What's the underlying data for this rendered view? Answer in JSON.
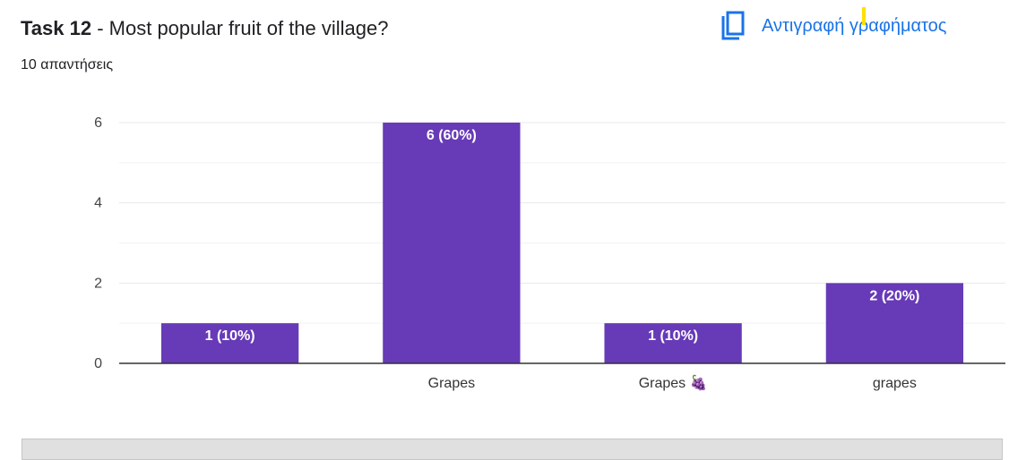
{
  "header": {
    "task_label": "Task 12",
    "question": " - Most popular fruit of the village?",
    "responses": "10 απαντήσεις",
    "copy_label": "Αντιγραφή γραφήματος"
  },
  "colors": {
    "bar": "#673ab7",
    "accent": "#1a73e8",
    "grid": "#e8e8e8",
    "axis": "#333333"
  },
  "chart_data": {
    "type": "bar",
    "categories": [
      "",
      "Grapes",
      "Grapes 🍇",
      "grapes"
    ],
    "values": [
      1,
      6,
      1,
      2
    ],
    "data_labels": [
      "1 (10%)",
      "6 (60%)",
      "1 (10%)",
      "2 (20%)"
    ],
    "ylim": [
      0,
      6
    ],
    "yticks": [
      0,
      2,
      4,
      6
    ],
    "grid": true
  }
}
